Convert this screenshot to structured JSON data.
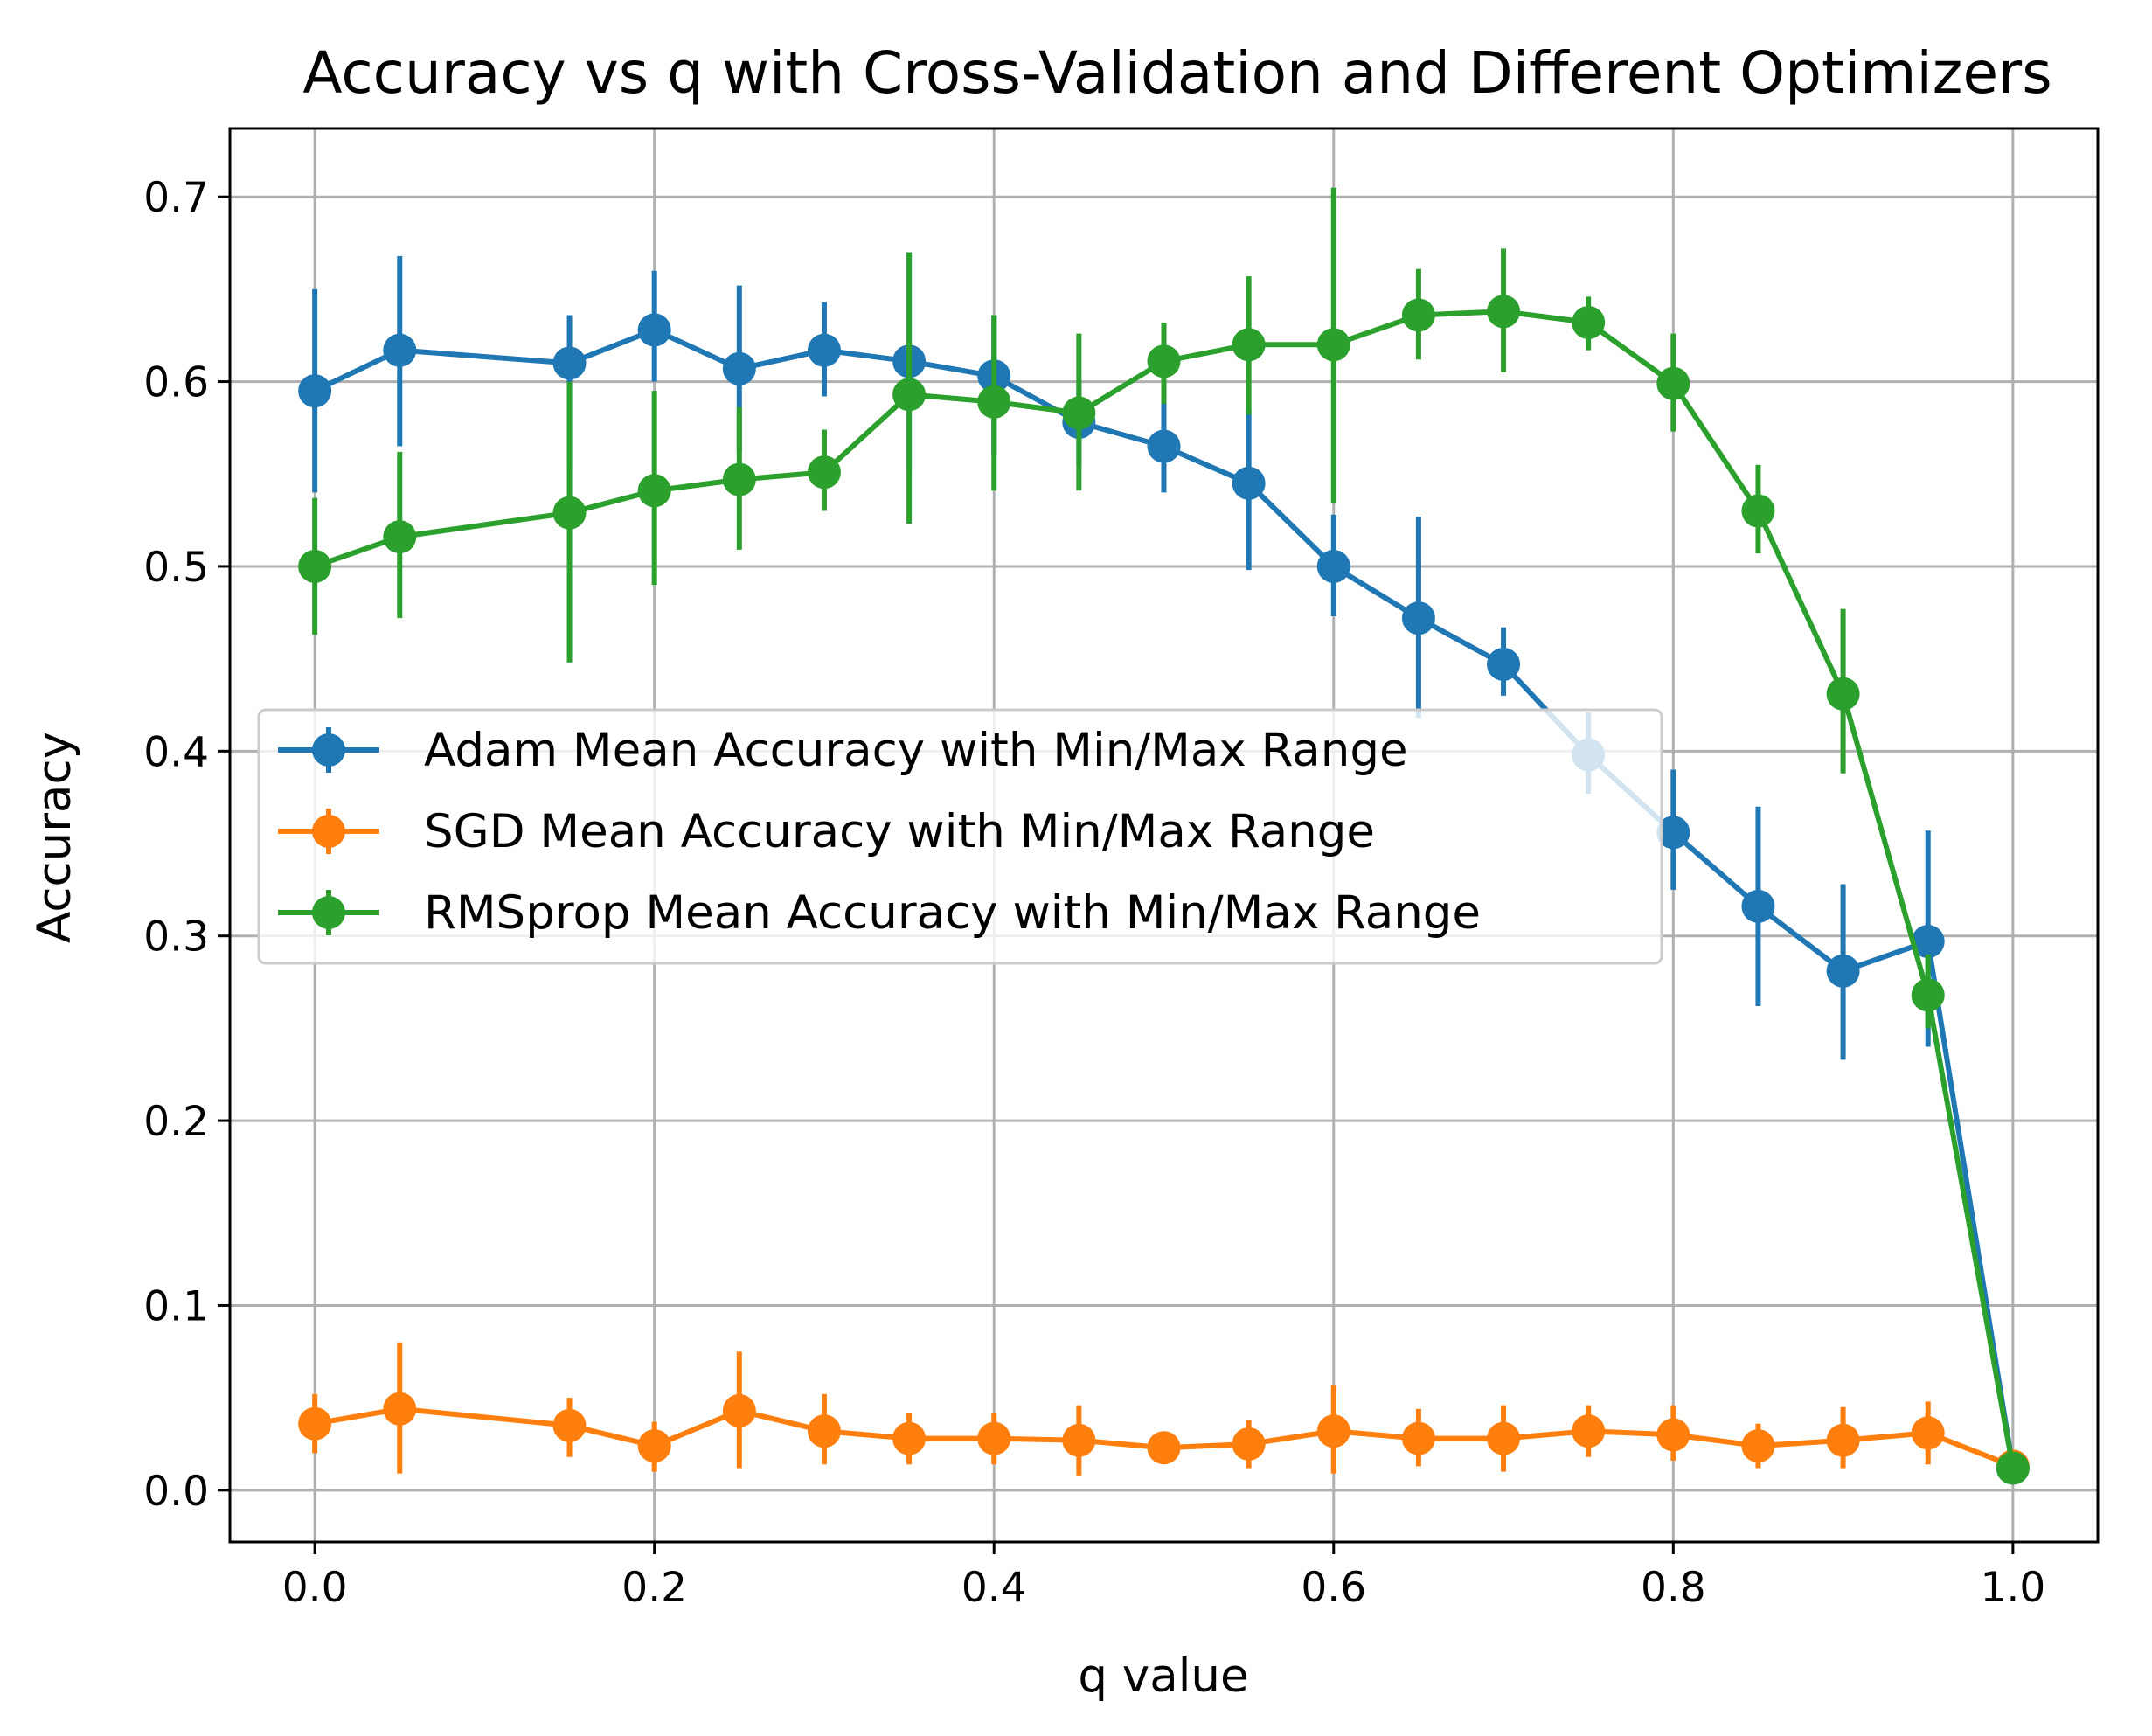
{
  "chart_data": {
    "type": "line",
    "title": "Accuracy vs q with Cross-Validation and Different Optimizers",
    "xlabel": "q value",
    "ylabel": "Accuracy",
    "xlim": [
      -0.05,
      1.05
    ],
    "ylim": [
      -0.028,
      0.737
    ],
    "xticks": [
      0.0,
      0.2,
      0.4,
      0.6,
      0.8,
      1.0
    ],
    "xtick_labels": [
      "0.0",
      "0.2",
      "0.4",
      "0.6",
      "0.8",
      "1.0"
    ],
    "yticks": [
      0.0,
      0.1,
      0.2,
      0.3,
      0.4,
      0.5,
      0.6,
      0.7
    ],
    "ytick_labels": [
      "0.0",
      "0.1",
      "0.2",
      "0.3",
      "0.4",
      "0.5",
      "0.6",
      "0.7"
    ],
    "grid": true,
    "legend_position": "center-left",
    "x": [
      0.0,
      0.05,
      0.15,
      0.2,
      0.25,
      0.3,
      0.35,
      0.4,
      0.45,
      0.5,
      0.55,
      0.6,
      0.65,
      0.7,
      0.75,
      0.8,
      0.85,
      0.9,
      0.95,
      1.0
    ],
    "series": [
      {
        "name": "Adam Mean Accuracy with Min/Max Range",
        "color": "#1f77b4",
        "values": [
          0.595,
          0.617,
          0.61,
          0.628,
          0.607,
          0.617,
          0.611,
          0.603,
          0.578,
          0.565,
          0.545,
          0.5,
          0.472,
          0.447,
          0.398,
          0.356,
          0.316,
          0.281,
          0.297,
          0.012
        ],
        "min": [
          0.54,
          0.565,
          0.555,
          0.6,
          0.562,
          0.592,
          0.552,
          0.56,
          0.555,
          0.54,
          0.498,
          0.473,
          0.418,
          0.43,
          0.377,
          0.325,
          0.262,
          0.233,
          0.24,
          0.005
        ],
        "max": [
          0.65,
          0.668,
          0.636,
          0.66,
          0.652,
          0.643,
          0.67,
          0.636,
          0.6,
          0.588,
          0.585,
          0.528,
          0.527,
          0.467,
          0.421,
          0.39,
          0.37,
          0.328,
          0.357,
          0.02
        ]
      },
      {
        "name": "SGD Mean Accuracy with Min/Max Range",
        "color": "#ff7f0e",
        "values": [
          0.036,
          0.044,
          0.035,
          0.024,
          0.043,
          0.032,
          0.028,
          0.028,
          0.027,
          0.023,
          0.025,
          0.032,
          0.028,
          0.028,
          0.032,
          0.03,
          0.024,
          0.027,
          0.031,
          0.013
        ],
        "min": [
          0.02,
          0.009,
          0.018,
          0.01,
          0.012,
          0.014,
          0.014,
          0.014,
          0.008,
          0.016,
          0.012,
          0.009,
          0.013,
          0.01,
          0.018,
          0.016,
          0.012,
          0.012,
          0.014,
          0.007
        ],
        "max": [
          0.052,
          0.08,
          0.05,
          0.037,
          0.075,
          0.052,
          0.042,
          0.042,
          0.046,
          0.03,
          0.038,
          0.057,
          0.044,
          0.046,
          0.046,
          0.046,
          0.036,
          0.045,
          0.048,
          0.02
        ]
      },
      {
        "name": "RMSprop Mean Accuracy with Min/Max Range",
        "color": "#2ca02c",
        "values": [
          0.5,
          0.516,
          0.529,
          0.541,
          0.547,
          0.551,
          0.593,
          0.589,
          0.583,
          0.611,
          0.62,
          0.62,
          0.636,
          0.638,
          0.632,
          0.599,
          0.53,
          0.431,
          0.268,
          0.012
        ],
        "min": [
          0.463,
          0.472,
          0.448,
          0.49,
          0.509,
          0.53,
          0.523,
          0.541,
          0.541,
          0.588,
          0.582,
          0.534,
          0.612,
          0.605,
          0.617,
          0.573,
          0.507,
          0.388,
          0.25,
          0.005
        ],
        "max": [
          0.537,
          0.562,
          0.6,
          0.595,
          0.586,
          0.574,
          0.67,
          0.636,
          0.626,
          0.632,
          0.657,
          0.705,
          0.661,
          0.672,
          0.646,
          0.626,
          0.555,
          0.477,
          0.29,
          0.02
        ]
      }
    ]
  }
}
